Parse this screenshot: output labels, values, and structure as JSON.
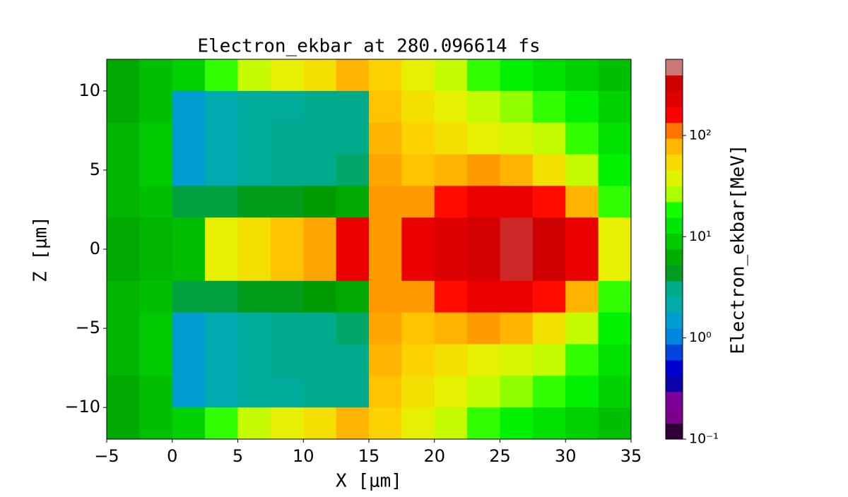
{
  "chart_data": {
    "type": "heatmap",
    "title": "Electron_ekbar at 280.096614 fs",
    "xlabel": "X  [μm]",
    "ylabel": "Z  [μm]",
    "colorbar_label": "Electron_ekbar[MeV]",
    "colormap": "nipy_spectral",
    "color_scale": "log",
    "xlim": [
      -5,
      35
    ],
    "ylim": [
      -12,
      12
    ],
    "xticks": [
      {
        "value": -5,
        "label": "−5"
      },
      0,
      5,
      10,
      15,
      20,
      25,
      30,
      35
    ],
    "yticks": [
      {
        "value": -10,
        "label": "−10"
      },
      {
        "value": -5,
        "label": "−5"
      },
      0,
      5,
      10
    ],
    "clim": [
      0.1,
      566
    ],
    "cticks": [
      {
        "value": 0.1,
        "label": "10⁻¹"
      },
      {
        "value": 1,
        "label": "10⁰"
      },
      {
        "value": 10,
        "label": "10¹"
      },
      {
        "value": 100,
        "label": "10²"
      }
    ],
    "x_bins": [
      -5,
      -2.5,
      0,
      2.5,
      5,
      7.5,
      10,
      12.5,
      15,
      17.5,
      20,
      22.5,
      25,
      27.5,
      30,
      32.5,
      35
    ],
    "y_bins": [
      12,
      10,
      8,
      6,
      4,
      2,
      0,
      -2,
      -4,
      -6,
      -8,
      -10,
      -12
    ],
    "z": [
      [
        6,
        8,
        10,
        20,
        30,
        40,
        50,
        80,
        60,
        40,
        30,
        20,
        15,
        12,
        10,
        8
      ],
      [
        6,
        8,
        1.5,
        2,
        2.5,
        2.5,
        3,
        3,
        70,
        50,
        40,
        30,
        25,
        20,
        15,
        10
      ],
      [
        7,
        9,
        1.5,
        2,
        2.5,
        3,
        3,
        3,
        80,
        60,
        50,
        40,
        35,
        30,
        20,
        12
      ],
      [
        7,
        9,
        1.5,
        2,
        2.5,
        3,
        3,
        3.5,
        90,
        70,
        80,
        100,
        80,
        50,
        30,
        15
      ],
      [
        7,
        8,
        4,
        4,
        4.5,
        4.5,
        5,
        6,
        100,
        100,
        150,
        200,
        200,
        150,
        80,
        20
      ],
      [
        6,
        7,
        8,
        40,
        50,
        70,
        90,
        200,
        100,
        200,
        250,
        300,
        400,
        350,
        200,
        40
      ],
      [
        6,
        7,
        8,
        40,
        50,
        70,
        90,
        200,
        100,
        200,
        250,
        300,
        400,
        350,
        200,
        40
      ],
      [
        7,
        8,
        4,
        4,
        4.5,
        4.5,
        5,
        6,
        100,
        100,
        150,
        200,
        200,
        150,
        80,
        20
      ],
      [
        7,
        9,
        1.5,
        2,
        2.5,
        3,
        3,
        3.5,
        90,
        70,
        80,
        100,
        80,
        50,
        30,
        15
      ],
      [
        7,
        9,
        1.5,
        2,
        2.5,
        3,
        3,
        3,
        80,
        60,
        50,
        40,
        35,
        30,
        20,
        12
      ],
      [
        6,
        8,
        1.5,
        2,
        2.5,
        2.5,
        3,
        3,
        70,
        50,
        40,
        30,
        25,
        20,
        15,
        10
      ],
      [
        6,
        8,
        10,
        20,
        30,
        40,
        50,
        80,
        60,
        40,
        30,
        20,
        15,
        12,
        10,
        8
      ]
    ]
  }
}
